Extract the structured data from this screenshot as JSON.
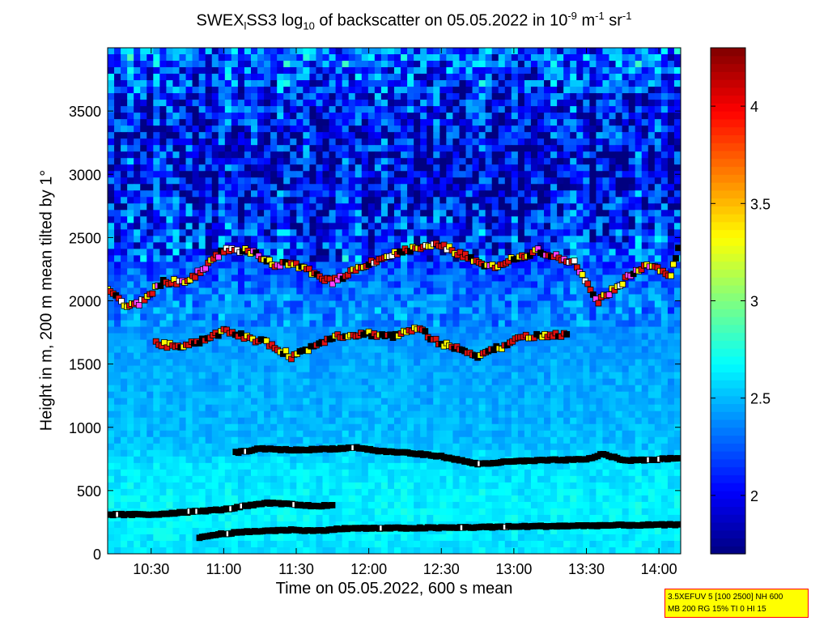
{
  "title": {
    "main": "SWEX",
    "sub1": "l",
    "mid": "SS3 log",
    "sub2": "10",
    "rest": " of backscatter on 05.05.2022 in 10",
    "sup1": "-9",
    "unit1": " m",
    "sup2": "-1",
    "unit2": " sr",
    "sup3": "-1"
  },
  "info_box": {
    "line1": "3.5XEFUV 5 [100 2500] NH 600",
    "line2": "MB 200 RG 15% TI 0 HI 15"
  },
  "colors": {
    "colormap": "jet",
    "layer_marker_base": "#000000",
    "marker_red": "#e01010",
    "marker_yellow": "#ffff00",
    "marker_magenta": "#ff40ff",
    "marker_white": "#ffffff",
    "info_box_bg": "#ffff00",
    "info_box_border": "#ff0000"
  },
  "chart_data": {
    "type": "heatmap",
    "xlabel": "Time on 05.05.2022, 600 s mean",
    "ylabel": "Height in m, 200 m mean tilted by 1°",
    "x_unit": "time HH:MM",
    "xlim": [
      "10:12",
      "14:09"
    ],
    "ylim": [
      0,
      4000
    ],
    "x_ticks": [
      "10:30",
      "11:00",
      "11:30",
      "12:00",
      "12:30",
      "13:00",
      "13:30",
      "14:00"
    ],
    "y_ticks": [
      0,
      500,
      1000,
      1500,
      2000,
      2500,
      3000,
      3500
    ],
    "colorbar": {
      "range": [
        1.7,
        4.3
      ],
      "ticks": [
        2,
        2.5,
        3,
        3.5,
        4
      ],
      "tick_labels": [
        "2",
        "2.5",
        "3",
        "3.5",
        "4"
      ]
    },
    "backscatter_profile": [
      {
        "height": 0,
        "value": 2.6
      },
      {
        "height": 200,
        "value": 2.65
      },
      {
        "height": 400,
        "value": 2.65
      },
      {
        "height": 700,
        "value": 2.6
      },
      {
        "height": 900,
        "value": 2.5
      },
      {
        "height": 1500,
        "value": 2.45
      },
      {
        "height": 2000,
        "value": 2.35
      },
      {
        "height": 2500,
        "value": 2.1
      },
      {
        "height": 3000,
        "value": 1.95
      },
      {
        "height": 3500,
        "value": 2.05
      },
      {
        "height": 4000,
        "value": 2.3
      }
    ],
    "layers": [
      {
        "points": [
          [
            "10:12",
            310
          ],
          [
            "10:30",
            310
          ],
          [
            "10:45",
            330
          ],
          [
            "11:00",
            350
          ],
          [
            "11:10",
            380
          ],
          [
            "11:18",
            400
          ],
          [
            "11:25",
            395
          ],
          [
            "11:35",
            380
          ],
          [
            "11:46",
            380
          ]
        ]
      },
      {
        "points": [
          [
            "10:50",
            130
          ],
          [
            "11:00",
            160
          ],
          [
            "11:15",
            180
          ],
          [
            "11:30",
            190
          ],
          [
            "11:37",
            180
          ],
          [
            "11:50",
            200
          ],
          [
            "12:30",
            205
          ],
          [
            "13:00",
            215
          ],
          [
            "13:20",
            220
          ],
          [
            "13:40",
            225
          ],
          [
            "14:09",
            230
          ]
        ]
      },
      {
        "points": [
          [
            "11:05",
            800
          ],
          [
            "11:15",
            830
          ],
          [
            "11:30",
            820
          ],
          [
            "11:45",
            830
          ],
          [
            "11:55",
            840
          ],
          [
            "12:05",
            810
          ],
          [
            "12:15",
            800
          ],
          [
            "12:30",
            770
          ],
          [
            "12:45",
            710
          ],
          [
            "13:00",
            730
          ],
          [
            "13:15",
            740
          ],
          [
            "13:30",
            745
          ],
          [
            "13:37",
            790
          ],
          [
            "13:45",
            740
          ],
          [
            "13:55",
            740
          ],
          [
            "14:09",
            760
          ]
        ]
      },
      {
        "points": [
          [
            "10:32",
            1660
          ],
          [
            "10:40",
            1640
          ],
          [
            "10:50",
            1680
          ],
          [
            "11:00",
            1760
          ],
          [
            "11:06",
            1730
          ],
          [
            "11:12",
            1700
          ],
          [
            "11:20",
            1650
          ],
          [
            "11:28",
            1560
          ],
          [
            "11:35",
            1620
          ],
          [
            "11:45",
            1720
          ],
          [
            "12:00",
            1740
          ],
          [
            "12:10",
            1720
          ],
          [
            "12:20",
            1780
          ],
          [
            "12:30",
            1660
          ],
          [
            "12:45",
            1570
          ],
          [
            "12:55",
            1640
          ],
          [
            "13:05",
            1720
          ],
          [
            "13:15",
            1720
          ],
          [
            "13:23",
            1740
          ]
        ]
      },
      {
        "points": [
          [
            "10:12",
            2100
          ],
          [
            "10:20",
            1950
          ],
          [
            "10:25",
            1980
          ],
          [
            "10:35",
            2150
          ],
          [
            "10:45",
            2150
          ],
          [
            "11:00",
            2400
          ],
          [
            "11:10",
            2400
          ],
          [
            "11:20",
            2290
          ],
          [
            "11:30",
            2280
          ],
          [
            "11:45",
            2150
          ],
          [
            "12:00",
            2300
          ],
          [
            "12:15",
            2400
          ],
          [
            "12:30",
            2440
          ],
          [
            "12:40",
            2350
          ],
          [
            "12:50",
            2260
          ],
          [
            "13:00",
            2330
          ],
          [
            "13:10",
            2400
          ],
          [
            "13:25",
            2300
          ],
          [
            "13:35",
            2000
          ],
          [
            "13:45",
            2150
          ],
          [
            "13:55",
            2300
          ],
          [
            "14:05",
            2200
          ],
          [
            "14:09",
            2480
          ]
        ]
      }
    ]
  }
}
